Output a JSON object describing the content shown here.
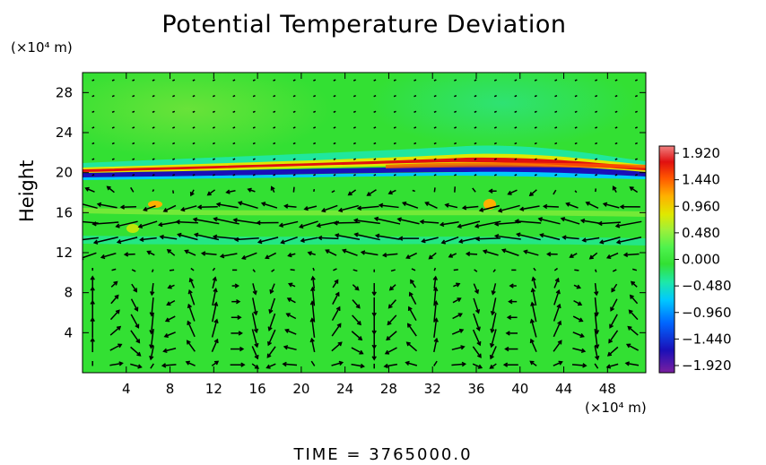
{
  "chart_data": {
    "type": "heatmap",
    "title": "Potential Temperature Deviation",
    "ylabel": "Height",
    "x_unit": "(×10⁴ m)",
    "y_unit": "(×10⁴ m)",
    "x_ticks": [
      4,
      8,
      12,
      16,
      20,
      24,
      28,
      32,
      36,
      40,
      44,
      48
    ],
    "y_ticks": [
      4,
      8,
      12,
      16,
      20,
      24,
      28
    ],
    "xlim": [
      0,
      51.5
    ],
    "ylim": [
      0,
      30
    ],
    "colorbar": {
      "ticks": [
        "1.920",
        "1.440",
        "0.960",
        "0.480",
        "0.000",
        "−0.480",
        "−0.960",
        "−1.440",
        "−1.920"
      ],
      "range": [
        -1.92,
        1.92
      ],
      "colors": [
        "#7a1fa0",
        "#1a0fb8",
        "#0066ff",
        "#00c8ff",
        "#1ee8a8",
        "#33e033",
        "#4df24d",
        "#9ef03a",
        "#e0e800",
        "#ffb000",
        "#ff5500",
        "#e01010",
        "#f08080"
      ]
    },
    "background_value": 0.0,
    "features": [
      {
        "type": "positive band",
        "height": 20.6,
        "value": 1.92
      },
      {
        "type": "negative band",
        "height": 20.0,
        "value": -1.92
      },
      {
        "type": "weak positive layer",
        "height_range": [
          22,
          29
        ],
        "value": 0.3
      }
    ],
    "vector_field": "velocity arrows overlaid on grid",
    "time_label": "TIME",
    "time_value": "3765000.0"
  }
}
